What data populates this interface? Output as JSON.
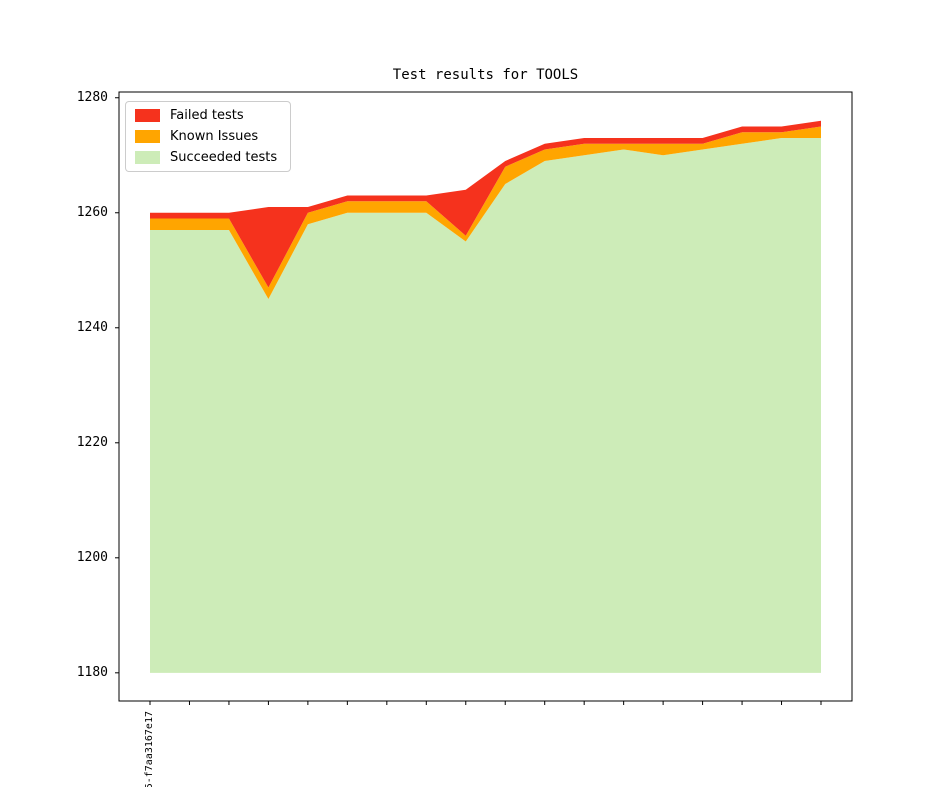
{
  "chart_data": {
    "type": "area",
    "stacked": true,
    "title": "Test results for TOOLS",
    "x_count": 18,
    "x_tick_labels": [
      "5-f7aa3167e17"
    ],
    "baseline_value": 1180,
    "series": [
      {
        "name": "Failed tests",
        "color": "#f5321d",
        "values": [
          1,
          1,
          1,
          14,
          1,
          1,
          1,
          1,
          8,
          1,
          1,
          1,
          1,
          1,
          1,
          1,
          1,
          1
        ]
      },
      {
        "name": "Known Issues",
        "color": "#ffa500",
        "values": [
          2,
          2,
          2,
          2,
          2,
          2,
          2,
          2,
          1,
          3,
          2,
          2,
          1,
          2,
          1,
          2,
          1,
          2
        ]
      },
      {
        "name": "Succeeded tests",
        "color": "#cdecb8",
        "values": [
          1257,
          1257,
          1257,
          1245,
          1258,
          1260,
          1260,
          1260,
          1255,
          1265,
          1269,
          1270,
          1271,
          1270,
          1271,
          1272,
          1273,
          1273
        ]
      }
    ],
    "totals": [
      1260,
      1260,
      1260,
      1261,
      1261,
      1263,
      1263,
      1263,
      1264,
      1269,
      1272,
      1273,
      1273,
      1273,
      1273,
      1275,
      1275,
      1276
    ],
    "y_ticks": [
      1180,
      1200,
      1220,
      1240,
      1260,
      1280
    ],
    "ylim": [
      1175.1,
      1281.0
    ],
    "legend_position": "upper left",
    "grid": false,
    "axis_color": "#000000",
    "background_color": "#ffffff"
  }
}
